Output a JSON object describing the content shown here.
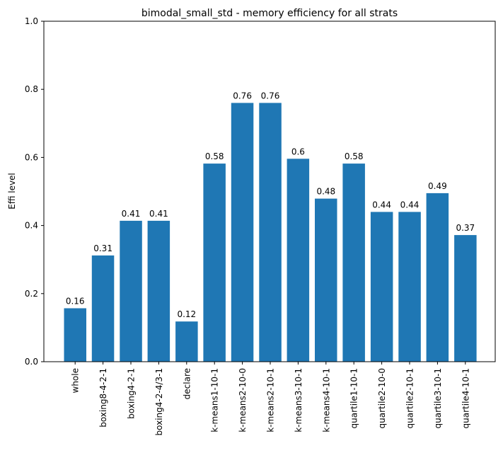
{
  "chart_data": {
    "type": "bar",
    "title": "bimodal_small_std - memory efficiency for all strats",
    "xlabel": "",
    "ylabel": "Effi level",
    "ylim": [
      0,
      1.0
    ],
    "yticks": [
      "0.0",
      "0.2",
      "0.4",
      "0.6",
      "0.8",
      "1.0"
    ],
    "categories": [
      "whole",
      "boxing8-4-2-1",
      "boxing4-2-1",
      "boxing4-2-4/3-1",
      "declare",
      "k-means1-10-1",
      "k-means2-10-0",
      "k-means2-10-1",
      "k-means3-10-1",
      "k-means4-10-1",
      "quartile1-10-1",
      "quartile2-10-0",
      "quartile2-10-1",
      "quartile3-10-1",
      "quartile4-10-1"
    ],
    "values": [
      0.157,
      0.312,
      0.414,
      0.414,
      0.118,
      0.582,
      0.76,
      0.76,
      0.596,
      0.479,
      0.582,
      0.44,
      0.44,
      0.495,
      0.372
    ],
    "data_labels": [
      "0.16",
      "0.31",
      "0.41",
      "0.41",
      "0.12",
      "0.58",
      "0.76",
      "0.76",
      "0.6",
      "0.48",
      "0.58",
      "0.44",
      "0.44",
      "0.49",
      "0.37"
    ],
    "grid": false,
    "legend": "none",
    "colors": {
      "bar": "#1f77b4",
      "axis": "#000000"
    }
  }
}
